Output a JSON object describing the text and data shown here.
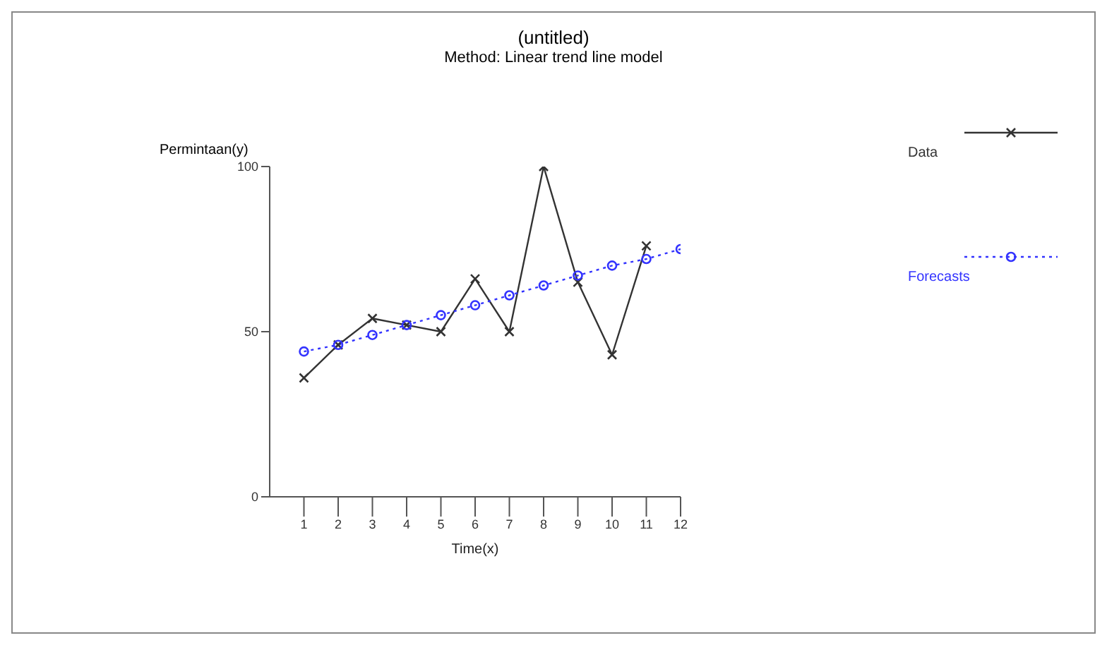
{
  "chart_data": {
    "type": "line",
    "title": "(untitled)",
    "subtitle": "Method: Linear trend line model",
    "xlabel": "Time(x)",
    "ylabel": "Permintaan(y)",
    "x": [
      1,
      2,
      3,
      4,
      5,
      6,
      7,
      8,
      9,
      10,
      11,
      12
    ],
    "series": [
      {
        "name": "Data",
        "color": "#333333",
        "marker": "cross",
        "line_style": "solid",
        "values": [
          36,
          46,
          54,
          52,
          50,
          66,
          50,
          100,
          65,
          43,
          76,
          null
        ]
      },
      {
        "name": "Forecasts",
        "color": "#3333ff",
        "marker": "circle",
        "line_style": "dotted",
        "values": [
          44,
          46,
          49,
          52,
          55,
          58,
          61,
          64,
          67,
          70,
          72,
          75
        ]
      }
    ],
    "xlim": [
      0,
      12
    ],
    "xticks": [
      1,
      2,
      3,
      4,
      5,
      6,
      7,
      8,
      9,
      10,
      11,
      12
    ],
    "ylim": [
      0,
      100
    ],
    "yticks": [
      0,
      50,
      100
    ],
    "grid": false,
    "legend": "right"
  }
}
